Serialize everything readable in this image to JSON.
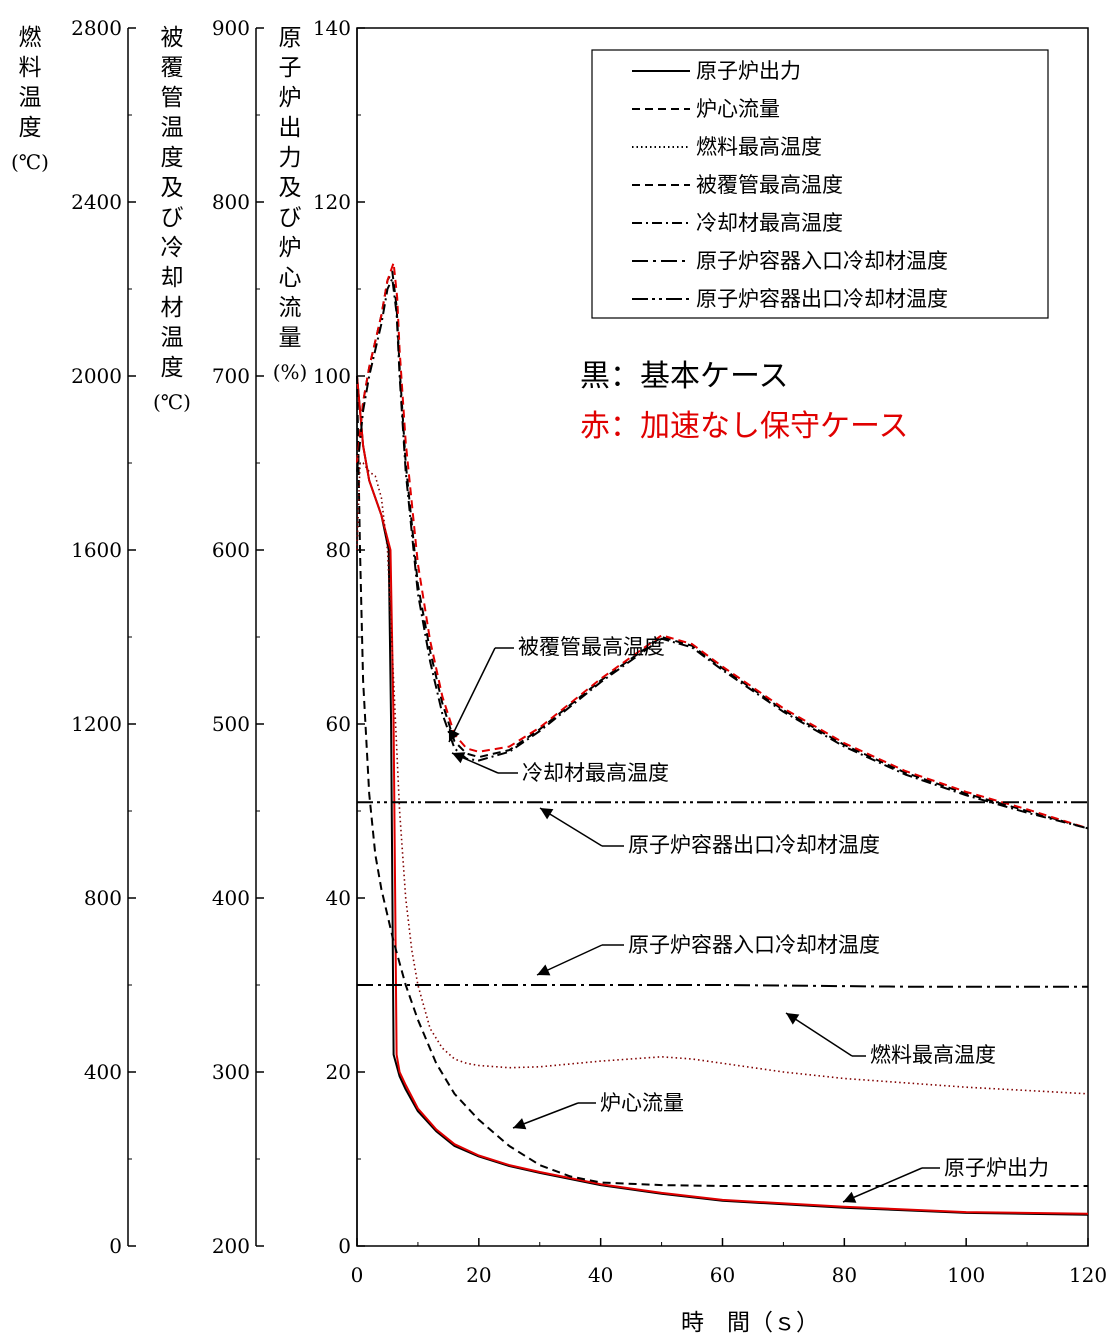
{
  "chart_data": {
    "type": "line",
    "xlabel": "時　間（ｓ）",
    "xlim": [
      0,
      120
    ],
    "x_ticks": [
      "0",
      "20",
      "40",
      "60",
      "80",
      "100",
      "120"
    ],
    "axes": [
      {
        "name": "fuel",
        "label_chars": [
          "燃",
          "料",
          "温",
          "度"
        ],
        "unit": "(℃)",
        "range": [
          0,
          2800
        ],
        "tick_values": [
          0,
          400,
          800,
          1200,
          1600,
          2000,
          2400,
          2800
        ],
        "ticks": [
          "0",
          "400",
          "800",
          "1200",
          "1600",
          "2000",
          "2400",
          "2800"
        ]
      },
      {
        "name": "clad_coolant",
        "label_chars": [
          "被",
          "覆",
          "管",
          "温",
          "度",
          "及",
          "び",
          "冷",
          "却",
          "材",
          "温",
          "度"
        ],
        "unit": "(℃)",
        "range": [
          200,
          900
        ],
        "tick_values": [
          200,
          300,
          400,
          500,
          600,
          700,
          800,
          900
        ],
        "ticks": [
          "200",
          "300",
          "400",
          "500",
          "600",
          "700",
          "800",
          "900"
        ]
      },
      {
        "name": "power_flow",
        "label_chars": [
          "原",
          "子",
          "炉",
          "出",
          "力",
          "及",
          "び",
          "炉",
          "心",
          "流",
          "量"
        ],
        "unit": "(%)",
        "range": [
          0,
          140
        ],
        "tick_values": [
          0,
          20,
          40,
          60,
          80,
          100,
          120,
          140
        ],
        "ticks": [
          "0",
          "20",
          "40",
          "60",
          "80",
          "100",
          "120",
          "140"
        ]
      }
    ],
    "legend": {
      "placement": "top-right",
      "entries": [
        "原子炉出力",
        "炉心流量",
        "燃料最高温度",
        "被覆管最高温度",
        "冷却材最高温度",
        "原子炉容器入口冷却材温度",
        "原子炉容器出口冷却材温度"
      ]
    },
    "case_notes": [
      {
        "text": "黒：基本ケース",
        "color": "#000000"
      },
      {
        "text": "赤：加速なし保守ケース",
        "color": "#e00000"
      }
    ],
    "callouts": [
      "被覆管最高温度",
      "冷却材最高温度",
      "原子炉容器出口冷却材温度",
      "原子炉容器入口冷却材温度",
      "燃料最高温度",
      "炉心流量",
      "原子炉出力"
    ],
    "series": [
      {
        "name": "原子炉出力",
        "axis": "power_flow",
        "style": "solid",
        "color": "#000000",
        "x": [
          0,
          1,
          2,
          4,
          5.2,
          5.6,
          6,
          7,
          8,
          10,
          13,
          16,
          20,
          25,
          30,
          40,
          50,
          60,
          80,
          100,
          120
        ],
        "y": [
          100,
          92,
          88,
          84,
          80,
          60,
          22,
          19.5,
          18,
          15.5,
          13.2,
          11.5,
          10.3,
          9.2,
          8.4,
          7.0,
          6.0,
          5.2,
          4.4,
          3.8,
          3.6
        ]
      },
      {
        "name": "原子炉出力 (加速なし保守ケース)",
        "axis": "power_flow",
        "style": "solid",
        "color": "#e00000",
        "x": [
          0,
          1,
          2,
          4,
          5.5,
          6,
          6.5,
          7,
          8,
          10,
          13,
          16,
          20,
          25,
          30,
          40,
          50,
          60,
          80,
          100,
          120
        ],
        "y": [
          100,
          92,
          88,
          84,
          80,
          60,
          22,
          20,
          18.5,
          15.8,
          13.4,
          11.7,
          10.4,
          9.3,
          8.5,
          7.1,
          6.1,
          5.3,
          4.5,
          3.9,
          3.7
        ]
      },
      {
        "name": "炉心流量",
        "axis": "power_flow",
        "style": "dashed",
        "color": "#000000",
        "x": [
          0,
          0.5,
          1,
          2,
          3,
          4,
          6,
          8,
          10,
          13,
          16,
          20,
          25,
          30,
          35,
          40,
          50,
          60,
          80,
          100,
          120
        ],
        "y": [
          100,
          80,
          65,
          52,
          45,
          41,
          35,
          30,
          26,
          21,
          17.5,
          14.5,
          11.5,
          9.3,
          8,
          7.3,
          7.0,
          6.9,
          6.9,
          6.9,
          6.9
        ]
      },
      {
        "name": "燃料最高温度",
        "axis": "fuel",
        "style": "dotted",
        "color": "#800000",
        "x": [
          0,
          0.5,
          1,
          2,
          3,
          4,
          5,
          6,
          7,
          8,
          9,
          10,
          12,
          14,
          16,
          18,
          20,
          25,
          30,
          40,
          50,
          55,
          60,
          70,
          80,
          100,
          120
        ],
        "y": [
          1600,
          1800,
          1800,
          1780,
          1770,
          1720,
          1600,
          1300,
          1000,
          800,
          680,
          600,
          500,
          455,
          430,
          420,
          415,
          410,
          412,
          425,
          435,
          430,
          420,
          400,
          385,
          365,
          350
        ]
      },
      {
        "name": "被覆管最高温度",
        "axis": "clad_coolant",
        "style": "dashed",
        "color": "#000000",
        "x": [
          0,
          1,
          2,
          3,
          4,
          5,
          5.8,
          6.5,
          7,
          8,
          10,
          12,
          14,
          16,
          18,
          20,
          25,
          30,
          40,
          50,
          55,
          60,
          70,
          80,
          90,
          100,
          110,
          120
        ],
        "y": [
          650,
          685,
          705,
          720,
          735,
          755,
          760,
          740,
          705,
          650,
          580,
          542,
          512,
          490,
          483,
          481,
          485,
          497,
          525,
          550,
          545,
          532,
          508,
          488,
          472,
          460,
          450,
          440
        ]
      },
      {
        "name": "被覆管最高温度 (加速なし保守ケース)",
        "axis": "clad_coolant",
        "style": "dashed",
        "color": "#e00000",
        "x": [
          0,
          1,
          2,
          3,
          4,
          5,
          6,
          6.6,
          7,
          8,
          10,
          12,
          14,
          16,
          18,
          20,
          25,
          30,
          40,
          50,
          55,
          60,
          70,
          80,
          90,
          100,
          110,
          120
        ],
        "y": [
          650,
          685,
          705,
          720,
          735,
          755,
          765,
          745,
          715,
          662,
          592,
          548,
          516,
          494,
          486,
          484,
          487,
          498,
          526,
          551,
          546,
          533,
          509,
          489,
          473,
          461,
          451,
          440
        ]
      },
      {
        "name": "冷却材最高温度",
        "axis": "clad_coolant",
        "style": "dashdot",
        "color": "#000000",
        "x": [
          0,
          1,
          2,
          3,
          4,
          5,
          5.8,
          6.5,
          7,
          8,
          10,
          12,
          14,
          16,
          18,
          20,
          25,
          30,
          40,
          50,
          55,
          60,
          70,
          80,
          90,
          100,
          110,
          120
        ],
        "y": [
          645,
          680,
          700,
          715,
          730,
          750,
          756,
          736,
          700,
          645,
          575,
          536,
          506,
          486,
          480,
          479,
          484,
          496,
          524,
          549,
          544,
          531,
          507,
          487,
          471,
          459,
          449,
          440
        ]
      },
      {
        "name": "原子炉容器入口冷却材温度",
        "axis": "clad_coolant",
        "style": "longdashdot",
        "color": "#000000",
        "x": [
          0,
          30,
          60,
          90,
          120
        ],
        "y": [
          350,
          350,
          350,
          349,
          349
        ]
      },
      {
        "name": "原子炉容器出口冷却材温度",
        "axis": "clad_coolant",
        "style": "dashdotdot",
        "color": "#000000",
        "x": [
          0,
          30,
          60,
          90,
          120
        ],
        "y": [
          455,
          455,
          455,
          455,
          455
        ]
      }
    ]
  }
}
